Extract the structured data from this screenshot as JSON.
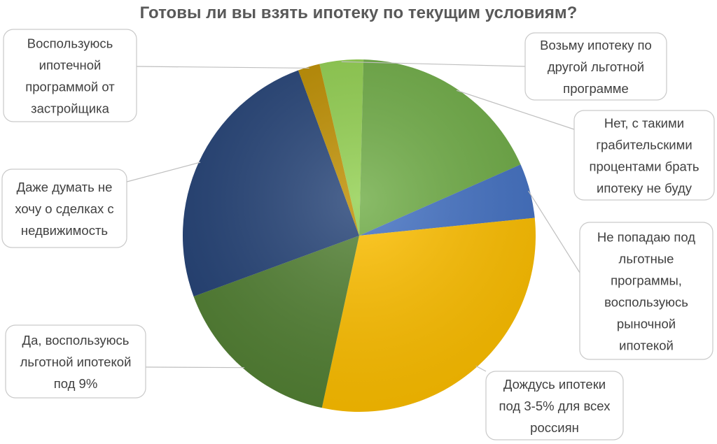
{
  "chart_data": {
    "type": "pie",
    "title": "Готовы ли вы взять ипотеку по текущим условиям?",
    "legend": "none",
    "slices": [
      {
        "label": "Возьму ипотеку по другой льготной программе",
        "value": 4,
        "color": "#92d050"
      },
      {
        "label": "Нет, с такими грабительскими процентами брать ипотеку не буду",
        "value": 18,
        "color": "#70ad47"
      },
      {
        "label": "Не попадаю под льготные программы, воспользуюсь рыночной ипотекой",
        "value": 5,
        "color": "#4472c4"
      },
      {
        "label": "Дождусь ипотеки под 3-5% для всех россиян",
        "value": 30,
        "color": "#ffc000"
      },
      {
        "label": "Да, воспользуюсь льготной ипотекой под 9%",
        "value": 16,
        "color": "#548235"
      },
      {
        "label": "Даже думать не хочу о сделках с недвижимость",
        "value": 25,
        "color": "#264478"
      },
      {
        "label": "Воспользуюсь ипотечной программой от застройщика",
        "value": 2,
        "color": "#bf8f00"
      }
    ]
  },
  "callouts": [
    {
      "lines": [
        "Возьму ипотеку по",
        "другой льготной",
        "программе"
      ]
    },
    {
      "lines": [
        "Нет, с такими",
        "грабительскими",
        "процентами брать",
        "ипотеку не буду"
      ]
    },
    {
      "lines": [
        "Не попадаю под",
        "льготные",
        "программы,",
        "воспользуюсь",
        "рыночной",
        "ипотекой"
      ]
    },
    {
      "lines": [
        "Дождусь ипотеки",
        "под 3-5% для всех",
        "россиян"
      ]
    },
    {
      "lines": [
        "Да, воспользуюсь",
        "льготной ипотекой",
        "под 9%"
      ]
    },
    {
      "lines": [
        "Даже думать не",
        "хочу о сделках с",
        "недвижимость"
      ]
    },
    {
      "lines": [
        "Воспользуюсь",
        "ипотечной",
        "программой от",
        "застройщика"
      ]
    }
  ]
}
